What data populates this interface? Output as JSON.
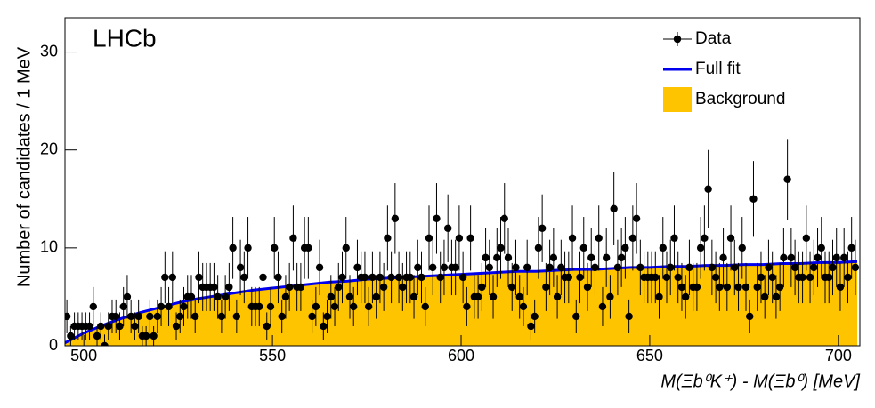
{
  "chart_data": {
    "type": "combo",
    "annotation": "LHCb",
    "x_label": "M(Ξb⁰K⁺) - M(Ξb⁰) [MeV]",
    "y_label": "Number of candidates / 1 MeV",
    "xlim": [
      495,
      705.7
    ],
    "ylim": [
      0,
      33.5
    ],
    "xticks": [
      500,
      550,
      600,
      650,
      700
    ],
    "yticks": [
      0,
      10,
      20,
      30
    ],
    "legend": "upper right",
    "series": [
      {
        "name": "Background",
        "type": "area",
        "color": "#ffc400",
        "x": [
          495,
          500,
          505,
          510,
          515,
          520,
          525,
          530,
          535,
          540,
          545,
          550,
          555,
          560,
          565,
          570,
          575,
          580,
          585,
          590,
          595,
          600,
          605,
          610,
          615,
          620,
          625,
          630,
          635,
          640,
          645,
          650,
          655,
          660,
          665,
          670,
          675,
          680,
          685,
          690,
          695,
          700,
          705
        ],
        "values": [
          0.3,
          1.3,
          2.1,
          2.8,
          3.4,
          3.9,
          4.4,
          4.8,
          5.1,
          5.4,
          5.7,
          5.9,
          6.1,
          6.3,
          6.5,
          6.6,
          6.8,
          6.9,
          7.0,
          7.1,
          7.2,
          7.3,
          7.4,
          7.5,
          7.6,
          7.6,
          7.7,
          7.8,
          7.8,
          7.9,
          8.0,
          8.0,
          8.1,
          8.1,
          8.2,
          8.2,
          8.3,
          8.3,
          8.4,
          8.4,
          8.5,
          8.5,
          8.6
        ]
      },
      {
        "name": "Full fit",
        "type": "line",
        "color": "#0000ee",
        "x": [
          495,
          500,
          505,
          510,
          515,
          520,
          525,
          530,
          535,
          540,
          545,
          550,
          555,
          560,
          565,
          570,
          575,
          580,
          585,
          590,
          595,
          600,
          605,
          610,
          615,
          620,
          625,
          630,
          635,
          640,
          645,
          650,
          655,
          660,
          665,
          670,
          675,
          680,
          685,
          690,
          695,
          700,
          705
        ],
        "values": [
          0.3,
          1.3,
          2.1,
          2.8,
          3.4,
          3.9,
          4.4,
          4.8,
          5.1,
          5.4,
          5.7,
          5.9,
          6.1,
          6.3,
          6.5,
          6.6,
          6.8,
          6.9,
          7.0,
          7.1,
          7.2,
          7.3,
          7.4,
          7.5,
          7.6,
          7.6,
          7.7,
          7.8,
          7.8,
          7.9,
          8.0,
          8.0,
          8.1,
          8.1,
          8.2,
          8.2,
          8.3,
          8.3,
          8.4,
          8.4,
          8.5,
          8.5,
          8.6
        ]
      },
      {
        "name": "Data",
        "type": "errorbar",
        "color": "#000000",
        "x": [
          495.5,
          496.5,
          497.5,
          498.5,
          499.5,
          500.5,
          501.5,
          502.5,
          503.5,
          504.5,
          505.5,
          506.5,
          507.5,
          508.5,
          509.5,
          510.5,
          511.5,
          512.5,
          513.5,
          514.5,
          515.5,
          516.5,
          517.5,
          518.5,
          519.5,
          520.5,
          521.5,
          522.5,
          523.5,
          524.5,
          525.5,
          526.5,
          527.5,
          528.5,
          529.5,
          530.5,
          531.5,
          532.5,
          533.5,
          534.5,
          535.5,
          536.5,
          537.5,
          538.5,
          539.5,
          540.5,
          541.5,
          542.5,
          543.5,
          544.5,
          545.5,
          546.5,
          547.5,
          548.5,
          549.5,
          550.5,
          551.5,
          552.5,
          553.5,
          554.5,
          555.5,
          556.5,
          557.5,
          558.5,
          559.5,
          560.5,
          561.5,
          562.5,
          563.5,
          564.5,
          565.5,
          566.5,
          567.5,
          568.5,
          569.5,
          570.5,
          571.5,
          572.5,
          573.5,
          574.5,
          575.5,
          576.5,
          577.5,
          578.5,
          579.5,
          580.5,
          581.5,
          582.5,
          583.5,
          584.5,
          585.5,
          586.5,
          587.5,
          588.5,
          589.5,
          590.5,
          591.5,
          592.5,
          593.5,
          594.5,
          595.5,
          596.5,
          597.5,
          598.5,
          599.5,
          600.5,
          601.5,
          602.5,
          603.5,
          604.5,
          605.5,
          606.5,
          607.5,
          608.5,
          609.5,
          610.5,
          611.5,
          612.5,
          613.5,
          614.5,
          615.5,
          616.5,
          617.5,
          618.5,
          619.5,
          620.5,
          621.5,
          622.5,
          623.5,
          624.5,
          625.5,
          626.5,
          627.5,
          628.5,
          629.5,
          630.5,
          631.5,
          632.5,
          633.5,
          634.5,
          635.5,
          636.5,
          637.5,
          638.5,
          639.5,
          640.5,
          641.5,
          642.5,
          643.5,
          644.5,
          645.5,
          646.5,
          647.5,
          648.5,
          649.5,
          650.5,
          651.5,
          652.5,
          653.5,
          654.5,
          655.5,
          656.5,
          657.5,
          658.5,
          659.5,
          660.5,
          661.5,
          662.5,
          663.5,
          664.5,
          665.5,
          666.5,
          667.5,
          668.5,
          669.5,
          670.5,
          671.5,
          672.5,
          673.5,
          674.5,
          675.5,
          676.5,
          677.5,
          678.5,
          679.5,
          680.5,
          681.5,
          682.5,
          683.5,
          684.5,
          685.5,
          686.5,
          687.5,
          688.5,
          689.5,
          690.5,
          691.5,
          692.5,
          693.5,
          694.5,
          695.5,
          696.5,
          697.5,
          698.5,
          699.5,
          700.5,
          701.5,
          702.5,
          703.5,
          704.5
        ],
        "values": [
          3,
          1,
          2,
          2,
          2,
          2,
          2,
          4,
          1,
          2,
          0,
          2,
          3,
          3,
          2,
          4,
          5,
          3,
          2,
          3,
          1,
          1,
          3,
          1,
          3,
          4,
          7,
          4,
          7,
          2,
          3,
          4,
          5,
          5,
          3,
          7,
          6,
          6,
          6,
          6,
          5,
          3,
          5,
          6,
          10,
          3,
          8,
          7,
          10,
          4,
          4,
          4,
          7,
          2,
          4,
          10,
          7,
          3,
          5,
          6,
          11,
          6,
          6,
          10,
          10,
          3,
          4,
          8,
          2,
          3,
          5,
          4,
          6,
          7,
          10,
          5,
          4,
          8,
          7,
          7,
          4,
          7,
          5,
          7,
          6,
          11,
          7,
          13,
          7,
          6,
          7,
          7,
          5,
          8,
          7,
          4,
          11,
          8,
          13,
          7,
          8,
          12,
          8,
          8,
          11,
          7,
          4,
          11,
          5,
          5,
          6,
          9,
          8,
          5,
          9,
          10,
          13,
          9,
          6,
          8,
          5,
          4,
          8,
          2,
          3,
          10,
          12,
          6,
          8,
          9,
          5,
          8,
          7,
          7,
          11,
          3,
          7,
          10,
          6,
          9,
          8,
          11,
          4,
          9,
          5,
          14,
          8,
          9,
          10,
          3,
          11,
          13,
          8,
          7,
          7,
          7,
          7,
          5,
          10,
          7,
          8,
          11,
          7,
          6,
          5,
          8,
          6,
          6,
          10,
          11,
          16,
          8,
          7,
          6,
          9,
          6,
          11,
          8,
          6,
          10,
          6,
          3,
          15,
          6,
          7,
          5,
          8,
          7,
          5,
          6,
          9,
          17,
          9,
          8,
          7,
          7,
          11,
          7,
          8,
          9,
          10,
          7,
          7,
          8,
          9,
          6,
          9,
          7,
          10,
          8
        ],
        "errors": [
          1.73,
          1,
          1.41,
          1.41,
          1.41,
          1.41,
          1.41,
          2,
          1,
          1.41,
          1.15,
          1.41,
          1.73,
          1.73,
          1.41,
          2,
          2.24,
          1.73,
          1.41,
          1.73,
          1,
          1,
          1.73,
          1,
          1.73,
          2,
          2.65,
          2,
          2.65,
          1.41,
          1.73,
          2,
          2.24,
          2.24,
          1.73,
          2.65,
          2.45,
          2.45,
          2.45,
          2.45,
          2.24,
          1.73,
          2.24,
          2.45,
          3.16,
          1.73,
          2.83,
          2.65,
          3.16,
          2,
          2,
          2,
          2.65,
          1.41,
          2,
          3.16,
          2.65,
          1.73,
          2.24,
          2.45,
          3.32,
          2.45,
          2.45,
          3.16,
          3.16,
          1.73,
          2,
          2.83,
          1.41,
          1.73,
          2.24,
          2,
          2.45,
          2.65,
          3.16,
          2.24,
          2,
          2.83,
          2.65,
          2.65,
          2,
          2.65,
          2.24,
          2.65,
          2.45,
          3.32,
          2.65,
          3.61,
          2.65,
          2.45,
          2.65,
          2.65,
          2.24,
          2.83,
          2.65,
          2,
          3.32,
          2.83,
          3.61,
          2.65,
          2.83,
          3.46,
          2.83,
          2.83,
          3.32,
          2.65,
          2,
          3.32,
          2.24,
          2.24,
          2.45,
          3,
          2.83,
          2.24,
          3,
          3.16,
          3.61,
          3,
          2.45,
          2.83,
          2.24,
          2,
          2.83,
          1.41,
          1.73,
          3.16,
          3.46,
          2.45,
          2.83,
          3,
          2.24,
          2.83,
          2.65,
          2.65,
          3.32,
          1.73,
          2.65,
          3.16,
          2.45,
          3,
          2.83,
          3.32,
          2,
          3,
          2.24,
          3.74,
          2.83,
          3,
          3.16,
          1.73,
          3.32,
          3.61,
          2.83,
          2.65,
          2.65,
          2.65,
          2.65,
          2.24,
          3.16,
          2.65,
          2.83,
          3.32,
          2.65,
          2.45,
          2.24,
          2.83,
          2.45,
          2.45,
          3.16,
          3.32,
          4,
          2.83,
          2.65,
          2.45,
          3,
          2.45,
          3.32,
          2.83,
          2.45,
          3.16,
          2.45,
          1.73,
          3.87,
          2.45,
          2.65,
          2.24,
          2.83,
          2.65,
          2.24,
          2.45,
          3,
          4.12,
          3,
          2.83,
          2.65,
          2.65,
          3.32,
          2.65,
          2.83,
          3,
          3.16,
          2.65,
          2.65,
          2.83,
          3,
          2.45,
          3,
          2.65,
          3.16,
          2.83
        ]
      }
    ]
  }
}
